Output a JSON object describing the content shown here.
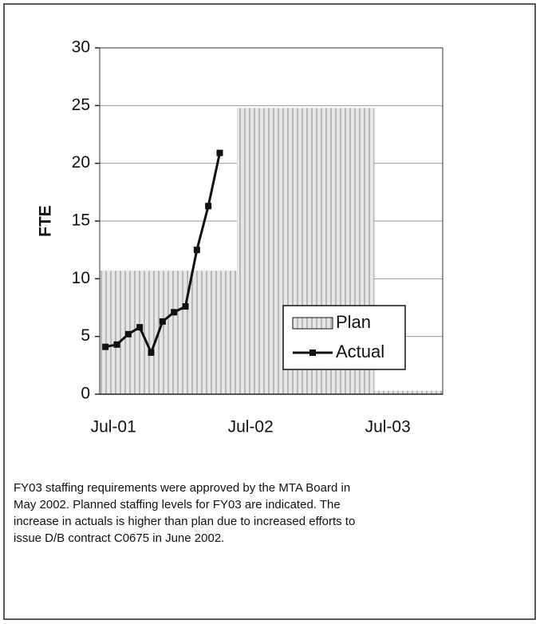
{
  "chart_data": {
    "type": "step-bar-line",
    "ylabel": "FTE",
    "categories": [
      "Jul-01",
      null,
      null,
      null,
      null,
      null,
      null,
      null,
      null,
      null,
      null,
      null,
      "Jul-02",
      null,
      null,
      null,
      null,
      null,
      null,
      null,
      null,
      null,
      null,
      null,
      "Jul-03",
      null,
      null,
      null,
      null,
      null
    ],
    "series": [
      {
        "name": "Plan",
        "kind": "bar",
        "color": "#bdbdbd",
        "values": [
          10.7,
          10.7,
          10.7,
          10.7,
          10.7,
          10.7,
          10.7,
          10.7,
          10.7,
          10.7,
          10.7,
          10.7,
          24.8,
          24.8,
          24.8,
          24.8,
          24.8,
          24.8,
          24.8,
          24.8,
          24.8,
          24.8,
          24.8,
          24.8,
          0.3,
          0.3,
          0.3,
          0.3,
          0.3,
          0.3
        ]
      },
      {
        "name": "Actual",
        "kind": "line",
        "color": "#111111",
        "values": [
          4.1,
          4.3,
          5.2,
          5.8,
          3.6,
          6.3,
          7.1,
          7.6,
          12.5,
          16.3,
          20.9,
          null,
          null,
          null,
          null,
          null,
          null,
          null,
          null,
          null,
          null,
          null,
          null,
          null,
          null,
          null,
          null,
          null,
          null,
          null
        ]
      }
    ],
    "ylim": [
      0,
      30
    ],
    "yticks": [
      0,
      5,
      10,
      15,
      20,
      25,
      30
    ],
    "grid": true,
    "legend": "lower right"
  },
  "caption": [
    "FY03 staffing requirements were approved by the MTA Board in",
    "May 2002.  Planned staffing levels for FY03 are indicated. The",
    "increase in actuals is higher than plan due to increased efforts to",
    "issue D/B contract C0675 in June 2002."
  ]
}
